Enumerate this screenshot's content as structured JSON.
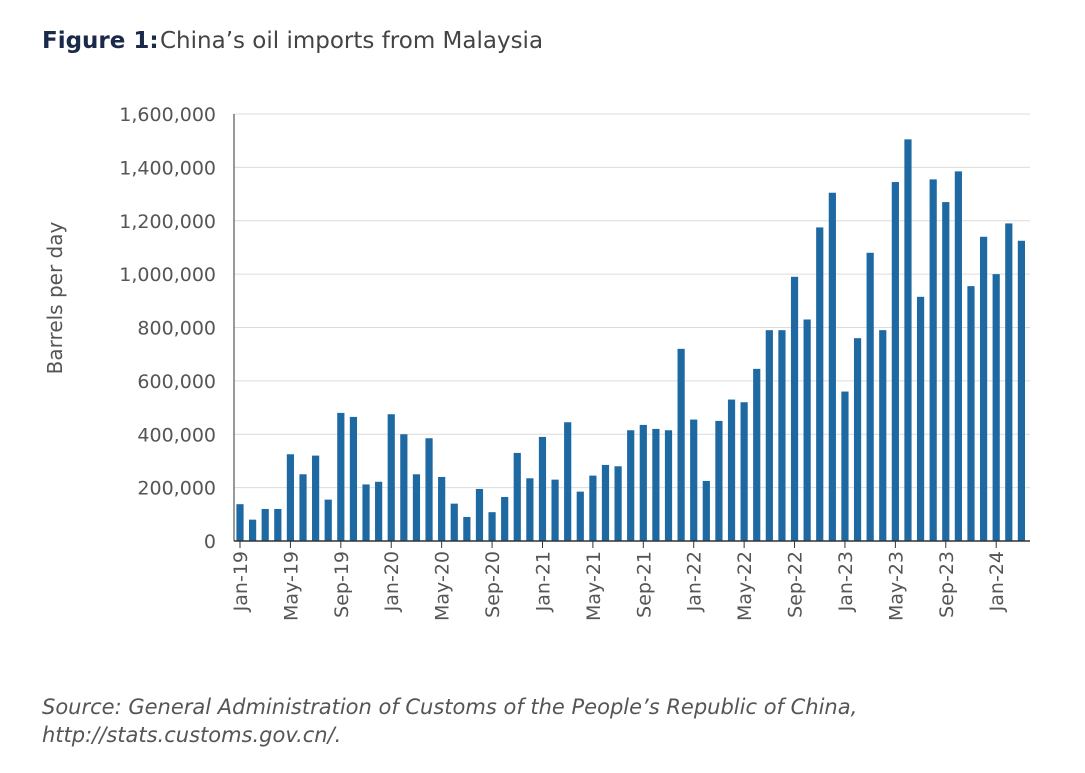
{
  "chart_data": {
    "type": "bar",
    "title_prefix": "Figure 1:",
    "title": "China’s oil imports from Malaysia",
    "y_label": "Barrels per day",
    "source_line1": "Source: General Administration of Customs of the People’s Republic of China,",
    "source_line2": "http://stats.customs.gov.cn/.",
    "color": "#1f69a3",
    "grid": true,
    "categories": [
      "Jan-19",
      null,
      null,
      null,
      "May-19",
      null,
      null,
      null,
      "Sep-19",
      null,
      null,
      null,
      "Jan-20",
      null,
      null,
      null,
      "May-20",
      null,
      null,
      null,
      "Sep-20",
      null,
      null,
      null,
      "Jan-21",
      null,
      null,
      null,
      "May-21",
      null,
      null,
      null,
      "Sep-21",
      null,
      null,
      null,
      "Jan-22",
      null,
      null,
      null,
      "May-22",
      null,
      null,
      null,
      "Sep-22",
      null,
      null,
      null,
      "Jan-23",
      null,
      null,
      null,
      "May-23",
      null,
      null,
      null,
      "Sep-23",
      null,
      null,
      null,
      "Jan-24",
      null,
      null
    ],
    "values": [
      138000,
      80000,
      120000,
      120000,
      325000,
      250000,
      320000,
      155000,
      480000,
      465000,
      212000,
      222000,
      475000,
      400000,
      250000,
      385000,
      240000,
      140000,
      90000,
      195000,
      108000,
      165000,
      330000,
      235000,
      390000,
      230000,
      445000,
      185000,
      245000,
      285000,
      280000,
      415000,
      435000,
      420000,
      415000,
      720000,
      455000,
      225000,
      450000,
      530000,
      520000,
      645000,
      790000,
      790000,
      990000,
      830000,
      1175000,
      1305000,
      560000,
      760000,
      1080000,
      790000,
      1345000,
      1505000,
      915000,
      1355000,
      1270000,
      1385000,
      955000,
      1140000,
      1000000,
      1190000,
      1125000
    ],
    "ylim": [
      0,
      1600000
    ],
    "yticks": [
      0,
      {
        "value": 200000,
        "label": "200,000"
      },
      {
        "value": 400000,
        "label": "400,000"
      },
      {
        "value": 600000,
        "label": "600,000"
      },
      {
        "value": 800000,
        "label": "800,000"
      },
      {
        "value": 1000000,
        "label": "1,000,000"
      },
      {
        "value": 1200000,
        "label": "1,200,000"
      },
      {
        "value": 1400000,
        "label": "1,400,000"
      },
      {
        "value": 1600000,
        "label": "1,600,000"
      }
    ]
  }
}
